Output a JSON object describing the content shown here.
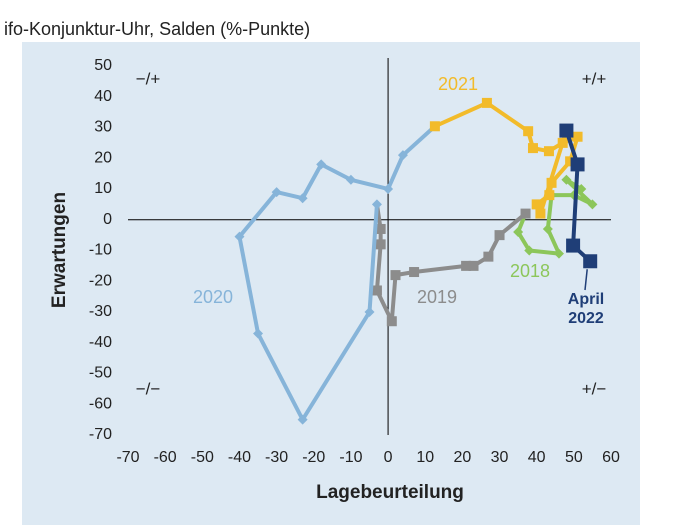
{
  "chart_data": {
    "type": "clock",
    "title": "ifo-Konjunktur-Uhr, Salden (%-Punkte)",
    "x_label": "Lagebeurteilung",
    "y_label": "Erwartungen",
    "xlim": [
      -70,
      60
    ],
    "ylim": [
      -70,
      50
    ],
    "xticks": [
      -70,
      -60,
      -50,
      -40,
      -30,
      -20,
      -10,
      0,
      10,
      20,
      30,
      40,
      50,
      60
    ],
    "yticks": [
      -70,
      -60,
      -50,
      -40,
      -30,
      -20,
      -10,
      0,
      10,
      20,
      30,
      40,
      50
    ],
    "quadrant_labels": [
      "−/+",
      "+/+",
      "−/−",
      "+/−"
    ],
    "series": [
      {
        "name": "2018",
        "color": "#8cc65a",
        "marker": "diamond",
        "x": [
          52,
          48,
          55,
          50,
          44,
          43,
          46,
          38,
          35
        ],
        "y": [
          10,
          13,
          5,
          8,
          8,
          -3,
          -11,
          -10,
          -4
        ]
      },
      {
        "name": "2019",
        "color": "#8c8c8c",
        "marker": "square",
        "x": [
          37,
          30,
          27,
          23,
          21,
          7,
          2,
          1,
          -3,
          -2,
          -2
        ],
        "y": [
          2,
          -5,
          -12,
          -15,
          -15,
          -17,
          -18,
          -33,
          -23,
          -8,
          -3
        ]
      },
      {
        "name": "2020",
        "color": "#86b4d9",
        "marker": "diamond",
        "x": [
          -3,
          -5,
          -23,
          -35,
          -40,
          -30,
          -23,
          -18,
          -10,
          0,
          4
        ],
        "y": [
          5,
          -30,
          -65,
          -37,
          -5.5,
          9,
          7,
          18,
          13,
          10,
          21
        ]
      },
      {
        "name": "2021",
        "color": "#f2bb2a",
        "marker": "square",
        "x": [
          12.6,
          26.6,
          37.7,
          39,
          43.3,
          47,
          51,
          49,
          44,
          43.4,
          40,
          41
        ],
        "y": [
          30.4,
          38,
          28.8,
          23.3,
          22.3,
          25,
          27,
          19,
          12,
          8,
          5,
          2
        ]
      },
      {
        "name": "April 2022",
        "color": "#1f3e77",
        "marker": "square",
        "x": [
          48,
          51,
          49.8,
          54.4
        ],
        "y": [
          29,
          18,
          -8.4,
          -13.5
        ]
      }
    ]
  }
}
